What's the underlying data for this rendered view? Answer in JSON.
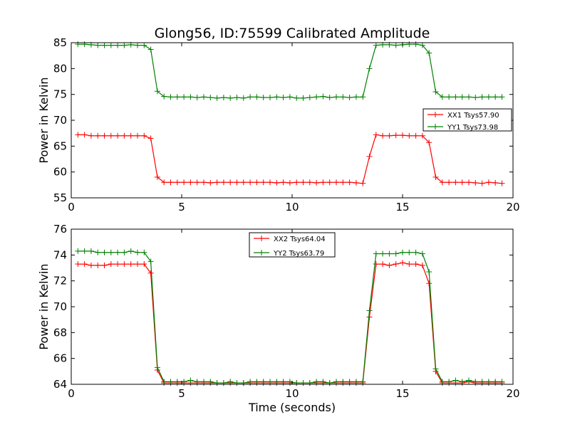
{
  "figure_title": "Glong56, ID:75599 Calibrated Amplitude",
  "chart_data": [
    {
      "type": "line",
      "title": "Glong56, ID:75599 Calibrated Amplitude",
      "xlabel": "",
      "ylabel": "Power in Kelvin",
      "xlim": [
        0,
        20
      ],
      "ylim": [
        55,
        85
      ],
      "xticks": [
        0,
        5,
        10,
        15,
        20
      ],
      "yticks": [
        55,
        60,
        65,
        70,
        75,
        80,
        85
      ],
      "grid": false,
      "legend_position": "center-right",
      "x": [
        0.3,
        0.6,
        0.9,
        1.2,
        1.5,
        1.8,
        2.1,
        2.4,
        2.7,
        3.0,
        3.3,
        3.6,
        3.9,
        4.2,
        4.5,
        4.8,
        5.1,
        5.4,
        5.7,
        6.0,
        6.3,
        6.6,
        6.9,
        7.2,
        7.5,
        7.8,
        8.1,
        8.4,
        8.7,
        9.0,
        9.3,
        9.6,
        9.9,
        10.2,
        10.5,
        10.8,
        11.1,
        11.4,
        11.7,
        12.0,
        12.3,
        12.6,
        12.9,
        13.2,
        13.5,
        13.8,
        14.1,
        14.4,
        14.7,
        15.0,
        15.3,
        15.6,
        15.9,
        16.2,
        16.5,
        16.8,
        17.1,
        17.4,
        17.7,
        18.0,
        18.3,
        18.6,
        18.9,
        19.2,
        19.5
      ],
      "series": [
        {
          "name": "XX1 Tsys57.90",
          "color": "#ff0000",
          "values": [
            67.2,
            67.2,
            67.0,
            67.0,
            67.0,
            67.0,
            67.0,
            67.0,
            67.0,
            67.0,
            67.0,
            66.5,
            59.0,
            58.0,
            58.0,
            58.0,
            58.0,
            58.0,
            58.0,
            58.0,
            57.9,
            58.0,
            58.0,
            58.0,
            58.0,
            58.0,
            58.0,
            58.0,
            58.0,
            58.0,
            57.9,
            58.0,
            57.9,
            58.0,
            58.0,
            58.0,
            57.9,
            58.0,
            58.0,
            58.0,
            58.0,
            58.0,
            57.9,
            57.8,
            63.0,
            67.2,
            67.0,
            67.0,
            67.1,
            67.1,
            67.0,
            67.0,
            67.0,
            65.7,
            59.0,
            58.0,
            58.0,
            58.0,
            58.0,
            58.0,
            57.9,
            57.8,
            58.0,
            57.9,
            57.8
          ]
        },
        {
          "name": "YY1 Tsys73.98",
          "color": "#008000",
          "values": [
            84.7,
            84.7,
            84.6,
            84.5,
            84.5,
            84.5,
            84.5,
            84.5,
            84.6,
            84.5,
            84.5,
            83.7,
            75.6,
            74.6,
            74.5,
            74.5,
            74.5,
            74.5,
            74.4,
            74.5,
            74.4,
            74.3,
            74.4,
            74.3,
            74.4,
            74.3,
            74.5,
            74.5,
            74.4,
            74.4,
            74.5,
            74.4,
            74.5,
            74.3,
            74.3,
            74.4,
            74.5,
            74.6,
            74.4,
            74.5,
            74.5,
            74.4,
            74.5,
            74.5,
            80.0,
            84.5,
            84.6,
            84.6,
            84.5,
            84.6,
            84.7,
            84.7,
            84.5,
            83.0,
            75.5,
            74.5,
            74.5,
            74.5,
            74.5,
            74.5,
            74.4,
            74.5,
            74.5,
            74.5,
            74.5
          ]
        }
      ]
    },
    {
      "type": "line",
      "title": "",
      "xlabel": "Time (seconds)",
      "ylabel": "Power in Kelvin",
      "xlim": [
        0,
        20
      ],
      "ylim": [
        64,
        76
      ],
      "xticks": [
        0,
        5,
        10,
        15,
        20
      ],
      "yticks": [
        64,
        66,
        68,
        70,
        72,
        74,
        76
      ],
      "grid": false,
      "legend_position": "top-center",
      "x": [
        0.3,
        0.6,
        0.9,
        1.2,
        1.5,
        1.8,
        2.1,
        2.4,
        2.7,
        3.0,
        3.3,
        3.6,
        3.9,
        4.2,
        4.5,
        4.8,
        5.1,
        5.4,
        5.7,
        6.0,
        6.3,
        6.6,
        6.9,
        7.2,
        7.5,
        7.8,
        8.1,
        8.4,
        8.7,
        9.0,
        9.3,
        9.6,
        9.9,
        10.2,
        10.5,
        10.8,
        11.1,
        11.4,
        11.7,
        12.0,
        12.3,
        12.6,
        12.9,
        13.2,
        13.5,
        13.8,
        14.1,
        14.4,
        14.7,
        15.0,
        15.3,
        15.6,
        15.9,
        16.2,
        16.5,
        16.8,
        17.1,
        17.4,
        17.7,
        18.0,
        18.3,
        18.6,
        18.9,
        19.2,
        19.5
      ],
      "series": [
        {
          "name": "XX2 Tsys64.04",
          "color": "#ff0000",
          "values": [
            73.3,
            73.3,
            73.2,
            73.2,
            73.2,
            73.3,
            73.3,
            73.3,
            73.3,
            73.3,
            73.3,
            72.6,
            65.1,
            64.1,
            64.1,
            64.1,
            64.1,
            64.1,
            64.1,
            64.1,
            64.1,
            64.1,
            64.1,
            64.1,
            64.1,
            64.1,
            64.1,
            64.1,
            64.1,
            64.1,
            64.1,
            64.1,
            64.1,
            64.1,
            64.1,
            64.1,
            64.1,
            64.1,
            64.1,
            64.1,
            64.1,
            64.1,
            64.1,
            64.1,
            69.2,
            73.3,
            73.3,
            73.2,
            73.3,
            73.4,
            73.3,
            73.3,
            73.2,
            71.8,
            65.0,
            64.1,
            64.1,
            64.1,
            64.1,
            64.2,
            64.1,
            64.1,
            64.1,
            64.1,
            64.1
          ]
        },
        {
          "name": "YY2 Tsys63.79",
          "color": "#008000",
          "values": [
            74.3,
            74.3,
            74.3,
            74.2,
            74.2,
            74.2,
            74.2,
            74.2,
            74.3,
            74.2,
            74.2,
            73.5,
            65.3,
            64.2,
            64.2,
            64.2,
            64.2,
            64.3,
            64.2,
            64.2,
            64.2,
            64.1,
            64.1,
            64.2,
            64.1,
            64.1,
            64.2,
            64.2,
            64.2,
            64.2,
            64.2,
            64.2,
            64.2,
            64.1,
            64.1,
            64.1,
            64.2,
            64.2,
            64.1,
            64.2,
            64.2,
            64.2,
            64.2,
            64.2,
            69.7,
            74.1,
            74.1,
            74.1,
            74.1,
            74.2,
            74.2,
            74.2,
            74.1,
            72.7,
            65.2,
            64.2,
            64.2,
            64.3,
            64.2,
            64.3,
            64.2,
            64.2,
            64.2,
            64.2,
            64.2
          ]
        }
      ]
    }
  ]
}
